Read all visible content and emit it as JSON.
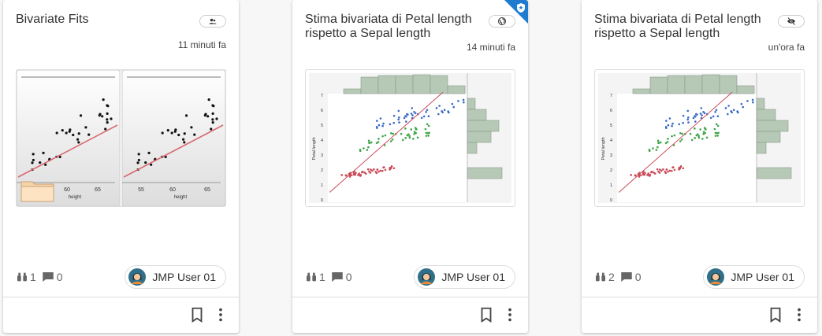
{
  "cards": [
    {
      "title": "Bivariate Fits",
      "time": "11 minuti fa",
      "views": "1",
      "comments": "0",
      "user": "JMP User 01",
      "thumbnail": {
        "panels": [
          {
            "xticks": [
              "60",
              "65"
            ],
            "xlabel": "height"
          },
          {
            "xticks": [
              "55",
              "60",
              "65"
            ],
            "xlabel": "height"
          }
        ]
      }
    },
    {
      "title": "Stima bivariata di Petal length rispetto a Sepal length",
      "time": "14 minuti fa",
      "views": "1",
      "comments": "0",
      "user": "JMP User 01",
      "thumbnail": {
        "yticks": [
          "0",
          "1",
          "2",
          "3",
          "4",
          "5",
          "6",
          "7"
        ],
        "ylabel": "Petal length"
      }
    },
    {
      "title": "Stima bivariata di Petal length rispetto a Sepal length",
      "time": "un'ora fa",
      "views": "2",
      "comments": "0",
      "user": "JMP User 01",
      "thumbnail": {
        "yticks": [
          "0",
          "1",
          "2",
          "3",
          "4",
          "5",
          "6",
          "7"
        ],
        "ylabel": "Petal length"
      }
    }
  ]
}
